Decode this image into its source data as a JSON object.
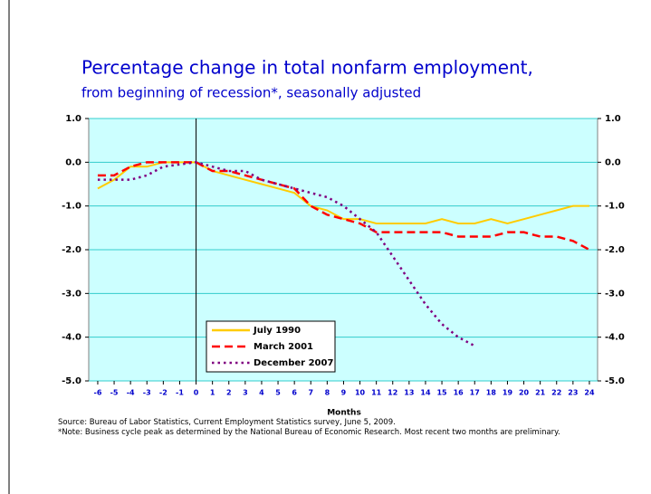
{
  "chart_data": {
    "type": "line",
    "title": "Percentage change in total nonfarm employment,",
    "subtitle": "from beginning of recession*, seasonally adjusted",
    "x_label": "Months",
    "source": "Source:  Bureau of Labor Statistics, Current Employment Statistics survey, June 5, 2009.",
    "note": "*Note: Business cycle peak as determined by the National Bureau of Economic Research.  Most recent two months are preliminary.",
    "x": [
      -6,
      -5,
      -4,
      -3,
      -2,
      -1,
      0,
      1,
      2,
      3,
      4,
      5,
      6,
      7,
      8,
      9,
      10,
      11,
      12,
      13,
      14,
      15,
      16,
      17,
      18,
      19,
      20,
      21,
      22,
      23,
      24
    ],
    "xlim": [
      -6.55,
      24.5
    ],
    "xticks": [
      -6,
      -5,
      -4,
      -3,
      -2,
      -1,
      0,
      1,
      2,
      3,
      4,
      5,
      6,
      7,
      8,
      9,
      10,
      11,
      12,
      13,
      14,
      15,
      16,
      17,
      18,
      19,
      20,
      21,
      22,
      23,
      24
    ],
    "ylim": [
      -5,
      1
    ],
    "yticks": [
      {
        "value": 1,
        "label": "1.0"
      },
      {
        "value": 0,
        "label": "0.0"
      },
      {
        "value": -1,
        "label": "-1.0"
      },
      {
        "value": -2,
        "label": "-2.0"
      },
      {
        "value": -3,
        "label": "-3.0"
      },
      {
        "value": -4,
        "label": "-4.0"
      },
      {
        "value": -5,
        "label": "-5.0"
      }
    ],
    "grid": true,
    "series": [
      {
        "name": "July 1990",
        "color": "#ffcc00",
        "dash": "solid",
        "values": [
          -0.6,
          -0.4,
          -0.1,
          -0.1,
          0,
          0,
          0,
          -0.2,
          -0.3,
          -0.4,
          -0.5,
          -0.6,
          -0.7,
          -1.0,
          -1.1,
          -1.3,
          -1.3,
          -1.4,
          -1.4,
          -1.4,
          -1.4,
          -1.3,
          -1.4,
          -1.4,
          -1.3,
          -1.4,
          -1.3,
          -1.2,
          -1.1,
          -1.0,
          -1.0
        ]
      },
      {
        "name": "March 2001",
        "color": "#ff0000",
        "dash": "dashed",
        "values": [
          -0.3,
          -0.3,
          -0.1,
          0,
          0,
          0,
          0,
          -0.2,
          -0.2,
          -0.3,
          -0.4,
          -0.5,
          -0.6,
          -1.0,
          -1.2,
          -1.3,
          -1.4,
          -1.6,
          -1.6,
          -1.6,
          -1.6,
          -1.6,
          -1.7,
          -1.7,
          -1.7,
          -1.6,
          -1.6,
          -1.7,
          -1.7,
          -1.8,
          -2.0
        ]
      },
      {
        "name": "December 2007",
        "color": "#800080",
        "dash": "dotted",
        "values": [
          -0.4,
          -0.4,
          -0.4,
          -0.3,
          -0.1,
          -0.05,
          0,
          -0.1,
          -0.2,
          -0.2,
          -0.4,
          -0.5,
          -0.6,
          -0.7,
          -0.8,
          -1.0,
          -1.3,
          -1.6,
          -2.15,
          -2.7,
          -3.25,
          -3.7,
          -4.0,
          -4.2,
          null,
          null,
          null,
          null,
          null,
          null,
          null
        ]
      }
    ]
  }
}
